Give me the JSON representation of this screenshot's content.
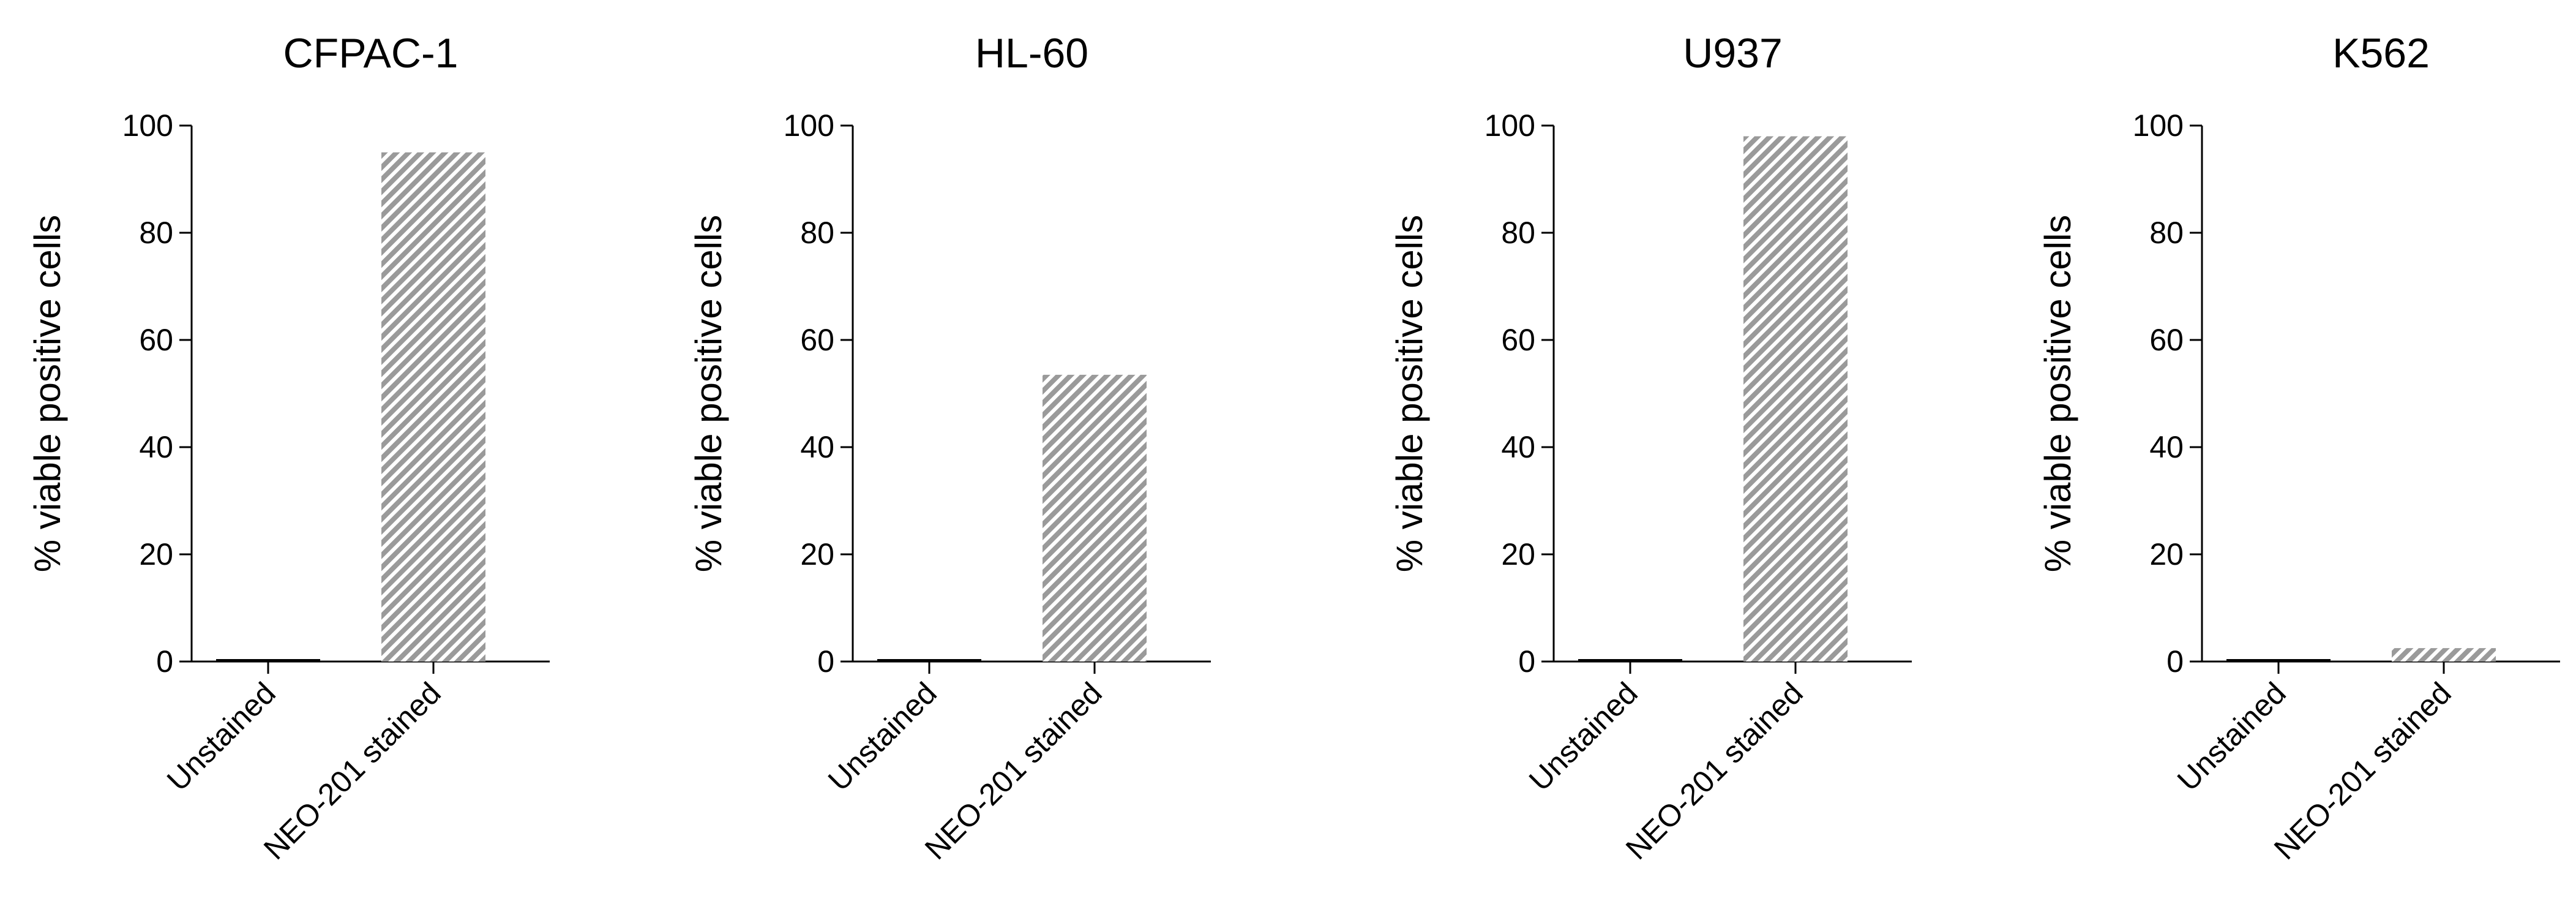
{
  "figure": {
    "panel_count": 4
  },
  "chart_data": [
    {
      "type": "bar",
      "title": "CFPAC-1",
      "ylabel": "% viable positive cells",
      "xlabel": "",
      "categories": [
        "Unstained",
        "NEO-201 stained"
      ],
      "values": [
        0.3,
        95
      ],
      "ylim": [
        0,
        100
      ],
      "yticks": [
        "0",
        "20",
        "40",
        "60",
        "80",
        "100"
      ],
      "fill_pattern": "diagonal-hatch",
      "bar_color": "#999999",
      "grid": false,
      "legend": "none"
    },
    {
      "type": "bar",
      "title": "HL-60",
      "ylabel": "% viable positive cells",
      "xlabel": "",
      "categories": [
        "Unstained",
        "NEO-201 stained"
      ],
      "values": [
        0.3,
        53.5
      ],
      "ylim": [
        0,
        100
      ],
      "yticks": [
        "0",
        "20",
        "40",
        "60",
        "80",
        "100"
      ],
      "fill_pattern": "diagonal-hatch",
      "bar_color": "#999999",
      "grid": false,
      "legend": "none"
    },
    {
      "type": "bar",
      "title": "U937",
      "ylabel": "% viable positive cells",
      "xlabel": "",
      "categories": [
        "Unstained",
        "NEO-201 stained"
      ],
      "values": [
        0.3,
        98
      ],
      "ylim": [
        0,
        100
      ],
      "yticks": [
        "0",
        "20",
        "40",
        "60",
        "80",
        "100"
      ],
      "fill_pattern": "diagonal-hatch",
      "bar_color": "#999999",
      "grid": false,
      "legend": "none"
    },
    {
      "type": "bar",
      "title": "K562",
      "ylabel": "% viable positive cells",
      "xlabel": "",
      "categories": [
        "Unstained",
        "NEO-201 stained"
      ],
      "values": [
        0.3,
        2.5
      ],
      "ylim": [
        0,
        100
      ],
      "yticks": [
        "0",
        "20",
        "40",
        "60",
        "80",
        "100"
      ],
      "fill_pattern": "diagonal-hatch",
      "bar_color": "#999999",
      "grid": false,
      "legend": "none"
    }
  ]
}
